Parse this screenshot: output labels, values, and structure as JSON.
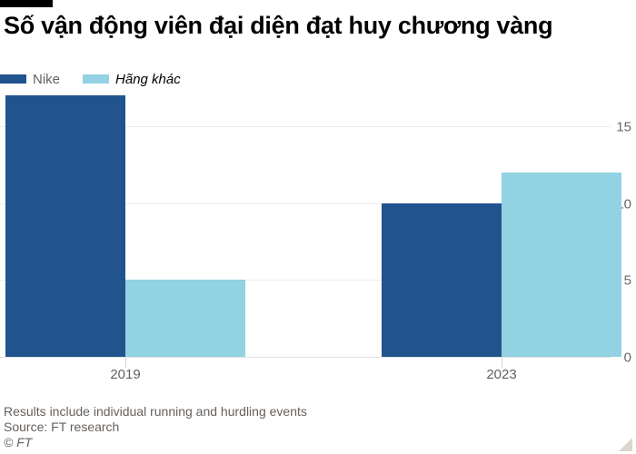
{
  "title": "Số vận động viên đại diện đạt huy chương vàng",
  "legend": [
    {
      "label": "Nike",
      "color": "#21548c"
    },
    {
      "label": "Hãng khác",
      "color": "#92d2e3"
    }
  ],
  "chart_data": {
    "type": "bar",
    "title": "Số vận động viên đại diện đạt huy chương vàng",
    "categories": [
      "2019",
      "2023"
    ],
    "series": [
      {
        "name": "Nike",
        "color": "#21548c",
        "values": [
          17,
          10
        ]
      },
      {
        "name": "Hãng khác",
        "color": "#92d2e3",
        "values": [
          5,
          12
        ]
      }
    ],
    "xlabel": "",
    "ylabel": "",
    "yticks": [
      0,
      5,
      10,
      15
    ],
    "ylim": [
      0,
      17.3
    ],
    "grid": true,
    "legend_position": "top-left",
    "y_axis_side": "right"
  },
  "footer": {
    "note": "Results include individual running and hurdling events",
    "source": "Source: FT research",
    "copyright": "© FT"
  }
}
